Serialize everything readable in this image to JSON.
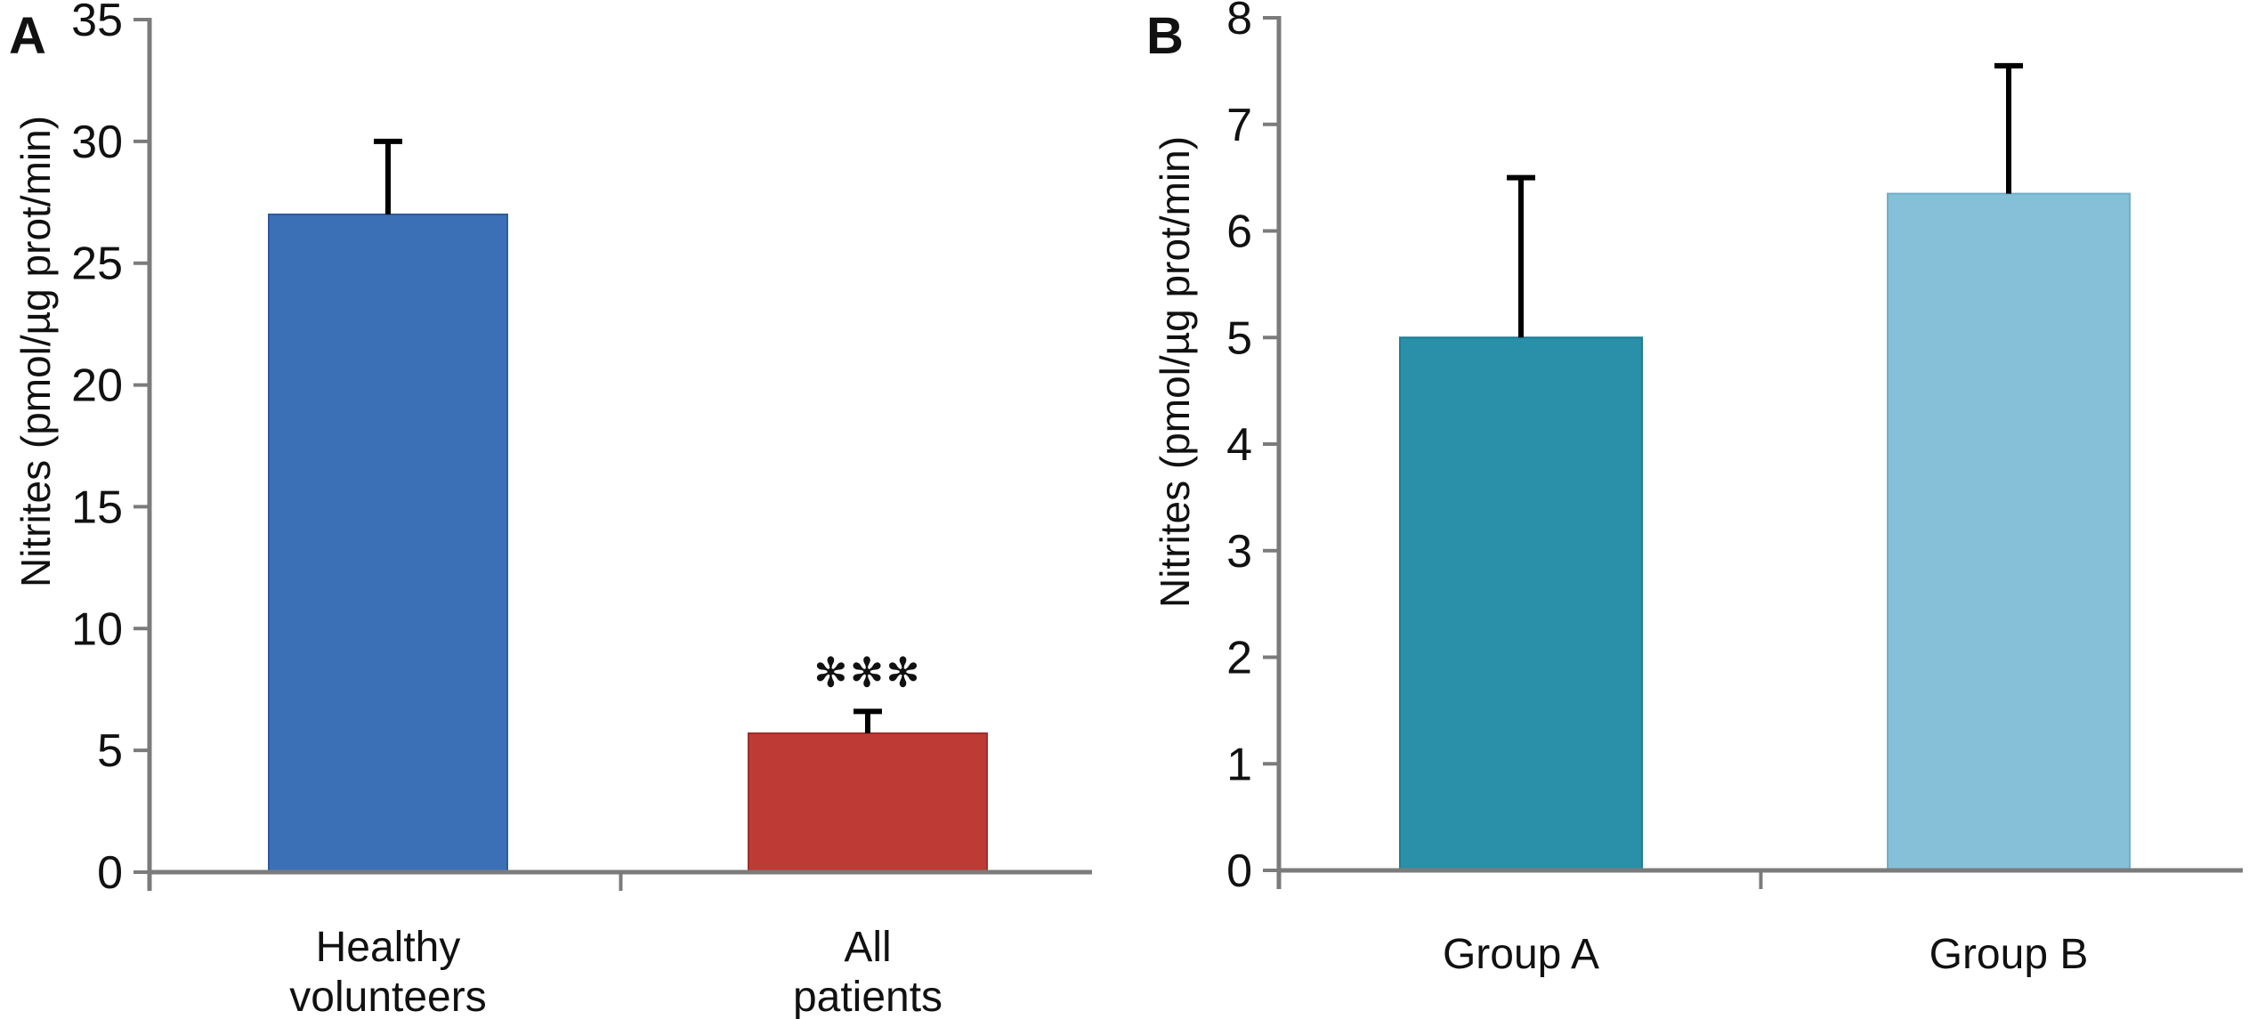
{
  "style": {
    "background": "#FFFFFF",
    "axis_color": "#7B7B7B",
    "error_bar_color": "#000000",
    "text_color": "#111111"
  },
  "chart_data": [
    {
      "type": "bar",
      "panel_label": "A",
      "title": "",
      "xlabel": "",
      "ylabel": "Nitrites (pmol/µg prot/min)",
      "ylim": [
        0,
        35
      ],
      "ytick_step": 5,
      "ytick_labels": [
        "0",
        "5",
        "10",
        "15",
        "20",
        "25",
        "30",
        "35"
      ],
      "grid": false,
      "legend": "none",
      "categories": [
        "Healthy volunteers",
        "All patients"
      ],
      "category_label_lines": [
        [
          "Healthy",
          "volunteers"
        ],
        [
          "All",
          "patients"
        ]
      ],
      "values": [
        27.0,
        5.7
      ],
      "error_plus": [
        3.0,
        0.9
      ],
      "significance": [
        "",
        "✻✻✻"
      ],
      "bar_colors": [
        "#3B70B7",
        "#BE3A34"
      ],
      "bar_edge_colors": [
        "#2C5C9C",
        "#9E2F2A"
      ]
    },
    {
      "type": "bar",
      "panel_label": "B",
      "title": "",
      "xlabel": "",
      "ylabel": "Nitrites (pmol/µg prot/min)",
      "ylim": [
        0,
        8
      ],
      "ytick_step": 1,
      "ytick_labels": [
        "0",
        "1",
        "2",
        "3",
        "4",
        "5",
        "6",
        "7",
        "8"
      ],
      "grid": false,
      "legend": "none",
      "categories": [
        "Group A",
        "Group B"
      ],
      "category_label_lines": [
        [
          "Group A"
        ],
        [
          "Group B"
        ]
      ],
      "values": [
        5.0,
        6.35
      ],
      "error_plus": [
        1.5,
        1.2
      ],
      "significance": [
        "",
        ""
      ],
      "bar_colors": [
        "#2A8FA8",
        "#86C0D8"
      ],
      "bar_edge_colors": [
        "#1F7E96",
        "#6FAFC9"
      ]
    }
  ]
}
